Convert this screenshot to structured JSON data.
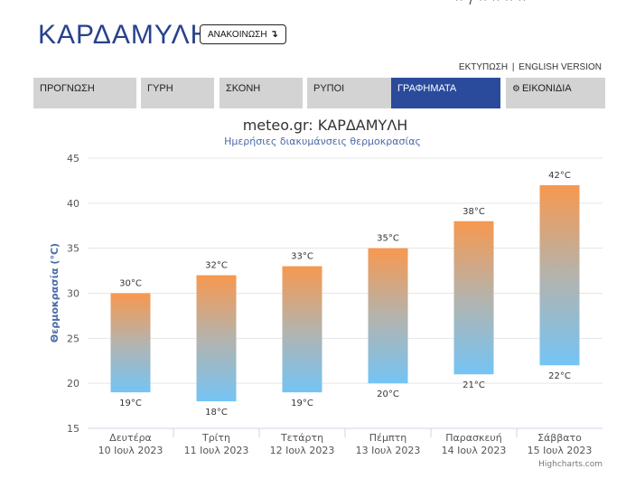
{
  "header": {
    "city": "ΚΑΡΔΑΜΥΛΗ",
    "announce_label": "ΑΝΑΚΟΙΝΩΣΗ",
    "announce_icon": "down-arrow-icon",
    "top_mark": "^ / ^ ^ ^ ^"
  },
  "links": {
    "print": "ΕΚΤΥΠΩΣΗ",
    "separator": "|",
    "english": "ENGLISH VERSION"
  },
  "tabs": [
    {
      "label": "ΠΡΟΓΝΩΣΗ",
      "active": false
    },
    {
      "label": "ΓΥΡΗ",
      "active": false
    },
    {
      "label": "ΣΚΟΝΗ",
      "active": false
    },
    {
      "label": "ΡΥΠΟΙ",
      "active": false
    },
    {
      "label": "ΓΡΑΦΗΜΑΤΑ",
      "active": true
    },
    {
      "label": "ΕΙΚΟΝΙΔΙΑ",
      "active": false,
      "icon": "gear-icon"
    }
  ],
  "colors": {
    "accent": "#2a4a9b",
    "title": "#27428c",
    "bar_top": "#f7984f",
    "bar_mid": "#b5b3ac",
    "bar_bottom": "#74c4f5"
  },
  "chart_data": {
    "type": "bar",
    "subtype": "columnrange",
    "title": "meteo.gr: ΚΑΡΔΑΜΥΛΗ",
    "subtitle": "Ημερήσιες διακυμάνσεις θερμοκρασίας",
    "ylabel": "Θερμοκρασία (°C)",
    "xlabel": "",
    "ylim": [
      15,
      45
    ],
    "yticks": [
      15,
      20,
      25,
      30,
      35,
      40,
      45
    ],
    "grid": true,
    "categories": [
      {
        "day": "Δευτέρα",
        "date": "10 Ιουλ 2023"
      },
      {
        "day": "Τρίτη",
        "date": "11 Ιουλ 2023"
      },
      {
        "day": "Τετάρτη",
        "date": "12 Ιουλ 2023"
      },
      {
        "day": "Πέμπτη",
        "date": "13 Ιουλ 2023"
      },
      {
        "day": "Παρασκευή",
        "date": "14 Ιουλ 2023"
      },
      {
        "day": "Σάββατο",
        "date": "15 Ιουλ 2023"
      }
    ],
    "series": [
      {
        "low": [
          19,
          18,
          19,
          20,
          21,
          22
        ],
        "high": [
          30,
          32,
          33,
          35,
          38,
          42
        ]
      }
    ],
    "unit_label": "°C",
    "credits": "Highcharts.com"
  }
}
